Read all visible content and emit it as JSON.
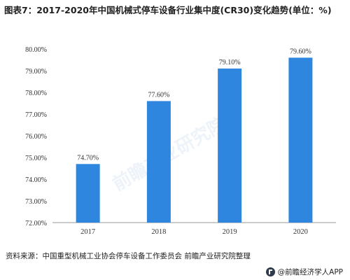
{
  "title": "图表7：2017-2020年中国机械式停车设备行业集中度(CR30)变化趋势(单位：%)",
  "source": "资料来源：中国重型机械工业协会停车设备工作委员会 前瞻产业研究院整理",
  "brand": "@前瞻经济学人APP",
  "watermark": "前瞻产业研究院",
  "colors": {
    "bar": "#2e86de",
    "axis": "#999999",
    "text": "#333333"
  },
  "chart_data": {
    "type": "bar",
    "categories": [
      "2017",
      "2018",
      "2019",
      "2020"
    ],
    "values": [
      74.7,
      77.6,
      79.1,
      79.6
    ],
    "data_labels": [
      "74.70%",
      "77.60%",
      "79.10%",
      "79.60%"
    ],
    "yticks": [
      "72.00%",
      "73.00%",
      "74.00%",
      "75.00%",
      "76.00%",
      "77.00%",
      "78.00%",
      "79.00%",
      "80.00%"
    ],
    "ylim": [
      72,
      80
    ],
    "grid": false,
    "legend": "none"
  }
}
